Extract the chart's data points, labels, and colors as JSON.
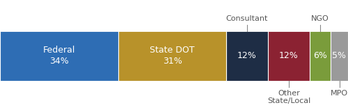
{
  "categories": [
    "Federal",
    "State DOT",
    "Consultant",
    "Other\nState/Local",
    "NGO",
    "MPO"
  ],
  "labels_inside": [
    "Federal\n34%",
    "State DOT\n31%",
    "12%",
    "12%",
    "6%",
    "5%"
  ],
  "values": [
    34,
    31,
    12,
    12,
    6,
    5
  ],
  "colors": [
    "#2e6db4",
    "#b8922a",
    "#1e2d45",
    "#8b2232",
    "#7a9c3b",
    "#9a9a9a"
  ],
  "text_colors": [
    "#ffffff",
    "#ffffff",
    "#ffffff",
    "#ffffff",
    "#ffffff",
    "#ffffff"
  ],
  "label_above": [
    false,
    false,
    true,
    false,
    true,
    false
  ],
  "label_below": [
    false,
    false,
    false,
    true,
    false,
    true
  ],
  "figsize": [
    5.0,
    1.62
  ],
  "dpi": 100,
  "background_color": "#ffffff",
  "font_size_inside": 9.0,
  "font_size_outside": 8.0
}
